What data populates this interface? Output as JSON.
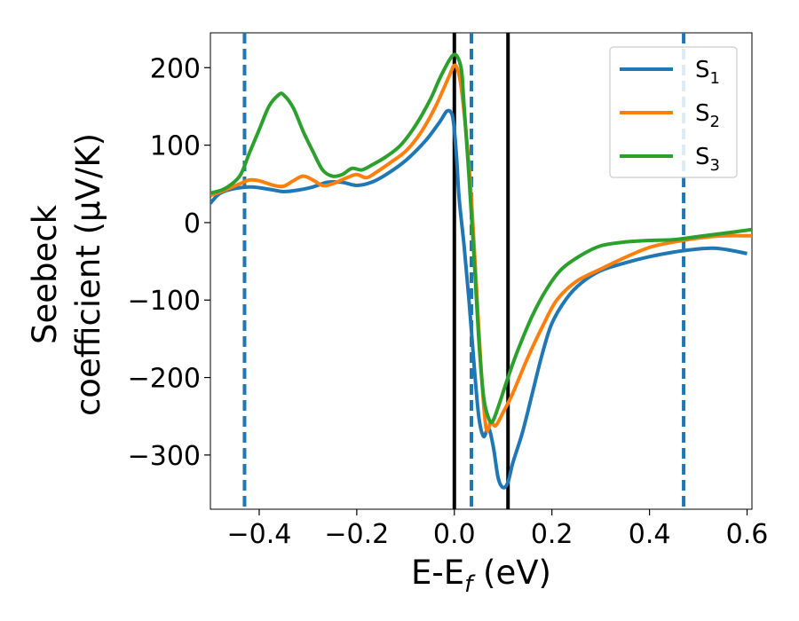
{
  "chart_data": {
    "type": "line",
    "xlabel": "E-E_f (eV)",
    "ylabel_line1": "Seebeck",
    "ylabel_line2": "coefficient  (μV/K)",
    "xlim": [
      -0.5,
      0.61
    ],
    "ylim": [
      -370,
      245
    ],
    "xticks": [
      -0.4,
      -0.2,
      0.0,
      0.2,
      0.4,
      0.6
    ],
    "xtick_labels": [
      "−0.4",
      "−0.2",
      "0.0",
      "0.2",
      "0.4",
      "0.6"
    ],
    "yticks": [
      200,
      100,
      0,
      -100,
      -200,
      -300
    ],
    "ytick_labels": [
      "200",
      "100",
      "0",
      "−100",
      "−200",
      "−300"
    ],
    "grid": false,
    "legend_position": "top-right",
    "series": [
      {
        "name": "S1",
        "label_base": "S",
        "label_sub": "1",
        "color": "#1f77b4",
        "points": [
          [
            -0.5,
            25
          ],
          [
            -0.48,
            38
          ],
          [
            -0.45,
            44
          ],
          [
            -0.42,
            46
          ],
          [
            -0.4,
            45
          ],
          [
            -0.37,
            42
          ],
          [
            -0.35,
            40
          ],
          [
            -0.32,
            42
          ],
          [
            -0.29,
            46
          ],
          [
            -0.26,
            52
          ],
          [
            -0.23,
            52
          ],
          [
            -0.2,
            48
          ],
          [
            -0.17,
            52
          ],
          [
            -0.14,
            62
          ],
          [
            -0.1,
            80
          ],
          [
            -0.06,
            105
          ],
          [
            -0.03,
            130
          ],
          [
            -0.015,
            144
          ],
          [
            -0.005,
            140
          ],
          [
            0.0,
            120
          ],
          [
            0.005,
            80
          ],
          [
            0.01,
            30
          ],
          [
            0.02,
            -30
          ],
          [
            0.03,
            -100
          ],
          [
            0.04,
            -180
          ],
          [
            0.05,
            -250
          ],
          [
            0.06,
            -276
          ],
          [
            0.07,
            -265
          ],
          [
            0.08,
            -290
          ],
          [
            0.09,
            -330
          ],
          [
            0.1,
            -342
          ],
          [
            0.11,
            -335
          ],
          [
            0.12,
            -310
          ],
          [
            0.14,
            -270
          ],
          [
            0.16,
            -220
          ],
          [
            0.18,
            -170
          ],
          [
            0.2,
            -130
          ],
          [
            0.23,
            -98
          ],
          [
            0.26,
            -78
          ],
          [
            0.3,
            -62
          ],
          [
            0.35,
            -52
          ],
          [
            0.4,
            -44
          ],
          [
            0.45,
            -38
          ],
          [
            0.5,
            -34
          ],
          [
            0.53,
            -33
          ],
          [
            0.56,
            -35
          ],
          [
            0.6,
            -40
          ]
        ]
      },
      {
        "name": "S2",
        "label_base": "S",
        "label_sub": "2",
        "color": "#ff7f0e",
        "points": [
          [
            -0.5,
            35
          ],
          [
            -0.47,
            42
          ],
          [
            -0.44,
            50
          ],
          [
            -0.42,
            55
          ],
          [
            -0.4,
            54
          ],
          [
            -0.37,
            48
          ],
          [
            -0.35,
            47
          ],
          [
            -0.33,
            54
          ],
          [
            -0.31,
            60
          ],
          [
            -0.29,
            55
          ],
          [
            -0.27,
            48
          ],
          [
            -0.25,
            50
          ],
          [
            -0.22,
            58
          ],
          [
            -0.2,
            62
          ],
          [
            -0.18,
            58
          ],
          [
            -0.16,
            65
          ],
          [
            -0.13,
            78
          ],
          [
            -0.1,
            92
          ],
          [
            -0.07,
            115
          ],
          [
            -0.04,
            148
          ],
          [
            -0.01,
            190
          ],
          [
            0.0,
            203
          ],
          [
            0.008,
            195
          ],
          [
            0.015,
            170
          ],
          [
            0.025,
            110
          ],
          [
            0.035,
            30
          ],
          [
            0.045,
            -80
          ],
          [
            0.055,
            -190
          ],
          [
            0.065,
            -265
          ],
          [
            0.075,
            -258
          ],
          [
            0.085,
            -262
          ],
          [
            0.1,
            -245
          ],
          [
            0.12,
            -220
          ],
          [
            0.15,
            -175
          ],
          [
            0.18,
            -135
          ],
          [
            0.21,
            -100
          ],
          [
            0.25,
            -76
          ],
          [
            0.3,
            -60
          ],
          [
            0.35,
            -45
          ],
          [
            0.4,
            -32
          ],
          [
            0.45,
            -25
          ],
          [
            0.5,
            -20
          ],
          [
            0.55,
            -17
          ],
          [
            0.61,
            -17
          ]
        ]
      },
      {
        "name": "S3",
        "label_base": "S",
        "label_sub": "3",
        "color": "#2ca02c",
        "points": [
          [
            -0.5,
            38
          ],
          [
            -0.47,
            44
          ],
          [
            -0.44,
            60
          ],
          [
            -0.42,
            90
          ],
          [
            -0.4,
            120
          ],
          [
            -0.38,
            150
          ],
          [
            -0.36,
            165
          ],
          [
            -0.35,
            165
          ],
          [
            -0.33,
            148
          ],
          [
            -0.31,
            118
          ],
          [
            -0.29,
            92
          ],
          [
            -0.27,
            68
          ],
          [
            -0.25,
            60
          ],
          [
            -0.23,
            62
          ],
          [
            -0.21,
            70
          ],
          [
            -0.19,
            68
          ],
          [
            -0.17,
            74
          ],
          [
            -0.14,
            85
          ],
          [
            -0.11,
            100
          ],
          [
            -0.08,
            125
          ],
          [
            -0.05,
            158
          ],
          [
            -0.03,
            186
          ],
          [
            -0.01,
            210
          ],
          [
            0.0,
            217
          ],
          [
            0.008,
            212
          ],
          [
            0.015,
            195
          ],
          [
            0.02,
            150
          ],
          [
            0.03,
            60
          ],
          [
            0.04,
            -40
          ],
          [
            0.05,
            -150
          ],
          [
            0.06,
            -225
          ],
          [
            0.07,
            -252
          ],
          [
            0.078,
            -257
          ],
          [
            0.09,
            -238
          ],
          [
            0.11,
            -200
          ],
          [
            0.13,
            -165
          ],
          [
            0.16,
            -120
          ],
          [
            0.19,
            -85
          ],
          [
            0.22,
            -60
          ],
          [
            0.26,
            -42
          ],
          [
            0.3,
            -30
          ],
          [
            0.35,
            -25
          ],
          [
            0.4,
            -23
          ],
          [
            0.45,
            -22
          ],
          [
            0.5,
            -18
          ],
          [
            0.55,
            -14
          ],
          [
            0.61,
            -9
          ]
        ]
      }
    ],
    "vlines": [
      {
        "x": -0.43,
        "style": "dashed",
        "color": "#1f77b4"
      },
      {
        "x": 0.0,
        "style": "solid",
        "color": "#000000"
      },
      {
        "x": 0.035,
        "style": "dashed",
        "color": "#1f77b4"
      },
      {
        "x": 0.11,
        "style": "solid",
        "color": "#000000"
      },
      {
        "x": 0.47,
        "style": "dashed",
        "color": "#1f77b4"
      }
    ]
  }
}
